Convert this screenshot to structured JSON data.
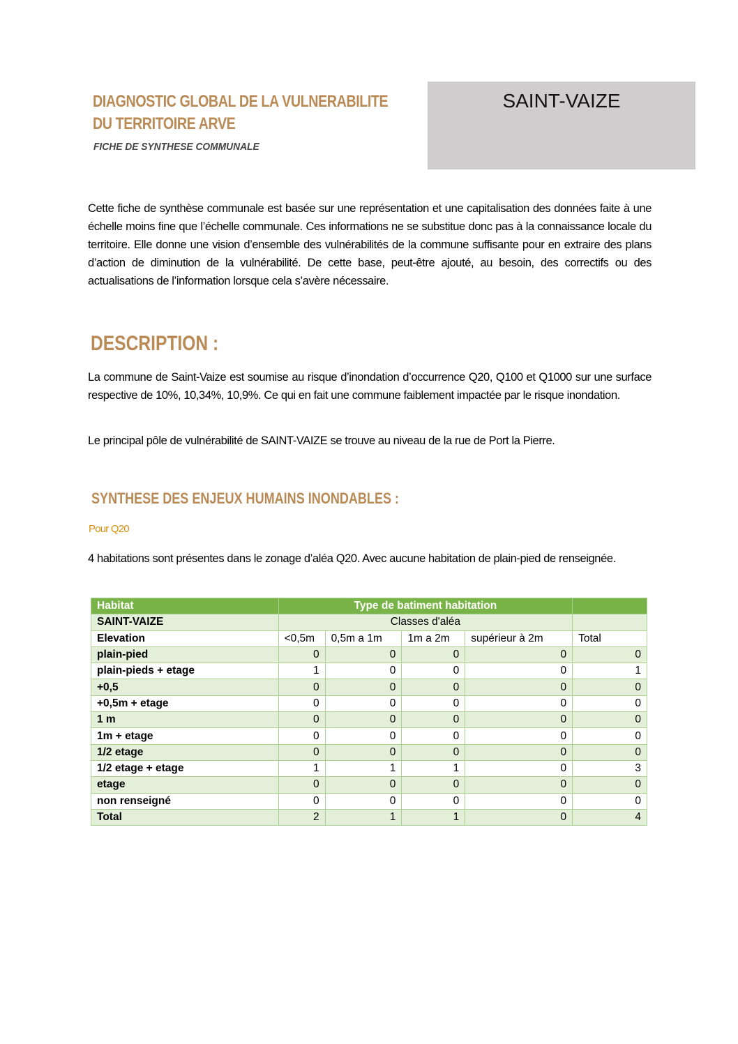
{
  "header": {
    "title_line1": "DIAGNOSTIC GLOBAL DE LA VULNERABILITE",
    "title_line2": "DU TERRITOIRE ARVE",
    "subtitle": "FICHE DE SYNTHESE COMMUNALE",
    "commune": "SAINT-VAIZE"
  },
  "intro": "Cette fiche de synthèse communale est basée sur une représentation et une capitalisation des données faite à une échelle moins fine que l’échelle communale. Ces informations ne se substitue donc pas à la connaissance locale du territoire. Elle donne une vision d’ensemble des vulnérabilités de la commune suffisante pour en extraire des plans d’action de diminution de la vulnérabilité. De cette base, peut-être ajouté, au besoin, des correctifs ou des actualisations de l’information lorsque cela s’avère nécessaire.",
  "description": {
    "heading": "DESCRIPTION :",
    "p1": "La commune de Saint-Vaize est soumise au risque d’inondation d’occurrence Q20, Q100 et Q1000 sur une surface respective de 10%, 10,34%, 10,9%. Ce qui en fait une commune faiblement impactée par le risque inondation.",
    "p2": "Le principal pôle de vulnérabilité de SAINT-VAIZE se trouve au niveau de la rue de Port la Pierre."
  },
  "synthese": {
    "heading": "SYNTHESE DES ENJEUX HUMAINS INONDABLES :",
    "subheading": "Pour Q20",
    "text": "4 habitations sont présentes dans le zonage d’aléa Q20. Avec aucune habitation de plain-pied de renseignée."
  },
  "table": {
    "header_left": "Habitat",
    "header_main": "Type de batiment habitation",
    "commune": "SAINT-VAIZE",
    "classes": "Classes d'aléa",
    "columns": [
      "Elevation",
      "<0,5m",
      "0,5m a 1m",
      "1m a 2m",
      "supérieur à 2m",
      "Total"
    ],
    "rows": [
      {
        "label": "plain-pied",
        "values": [
          "0",
          "0",
          "0",
          "0",
          "0"
        ]
      },
      {
        "label": "plain-pieds + etage",
        "values": [
          "1",
          "0",
          "0",
          "0",
          "1"
        ]
      },
      {
        "label": "+0,5",
        "values": [
          "0",
          "0",
          "0",
          "0",
          "0"
        ]
      },
      {
        "label": "+0,5m + etage",
        "values": [
          "0",
          "0",
          "0",
          "0",
          "0"
        ]
      },
      {
        "label": "1 m",
        "values": [
          "0",
          "0",
          "0",
          "0",
          "0"
        ]
      },
      {
        "label": "1m + etage",
        "values": [
          "0",
          "0",
          "0",
          "0",
          "0"
        ]
      },
      {
        "label": "1/2 etage",
        "values": [
          "0",
          "0",
          "0",
          "0",
          "0"
        ]
      },
      {
        "label": "1/2 etage + etage",
        "values": [
          "1",
          "1",
          "1",
          "0",
          "3"
        ]
      },
      {
        "label": "etage",
        "values": [
          "0",
          "0",
          "0",
          "0",
          "0"
        ]
      },
      {
        "label": "non renseigné",
        "values": [
          "0",
          "0",
          "0",
          "0",
          "0"
        ]
      },
      {
        "label": "Total",
        "values": [
          "2",
          "1",
          "1",
          "0",
          "4"
        ]
      }
    ]
  },
  "colors": {
    "title": "#b98a55",
    "accent": "#d9900f",
    "table_header": "#77b347",
    "table_band": "#e4efd9"
  }
}
